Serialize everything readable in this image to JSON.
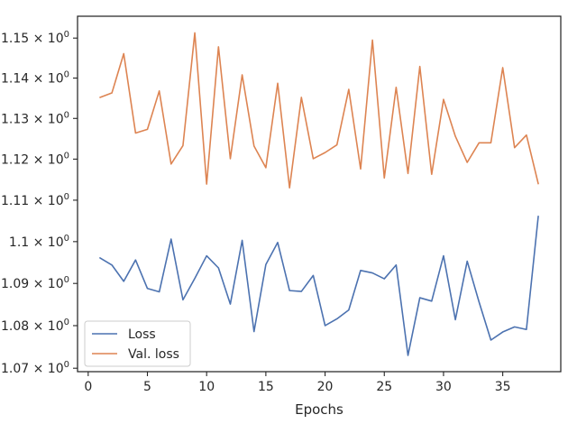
{
  "chart_data": {
    "type": "line",
    "xlabel": "Epochs",
    "ylabel": "",
    "xlim": [
      -0.9,
      39.9
    ],
    "ylim": [
      1.0692,
      1.1555
    ],
    "y_scale": "log",
    "grid": false,
    "legend_position": "lower-left",
    "x_ticks": [
      0,
      5,
      10,
      15,
      20,
      25,
      30,
      35
    ],
    "x_tick_labels": [
      "0",
      "5",
      "10",
      "15",
      "20",
      "25",
      "30",
      "35"
    ],
    "y_ticks": [
      1.07,
      1.08,
      1.09,
      1.1,
      1.11,
      1.12,
      1.13,
      1.14,
      1.15
    ],
    "y_tick_labels": [
      {
        "mantissa": "1.07",
        "base": "10",
        "exp": "0"
      },
      {
        "mantissa": "1.08",
        "base": "10",
        "exp": "0"
      },
      {
        "mantissa": "1.09",
        "base": "10",
        "exp": "0"
      },
      {
        "mantissa": "1.1",
        "base": "10",
        "exp": "0"
      },
      {
        "mantissa": "1.11",
        "base": "10",
        "exp": "0"
      },
      {
        "mantissa": "1.12",
        "base": "10",
        "exp": "0"
      },
      {
        "mantissa": "1.13",
        "base": "10",
        "exp": "0"
      },
      {
        "mantissa": "1.14",
        "base": "10",
        "exp": "0"
      },
      {
        "mantissa": "1.15",
        "base": "10",
        "exp": "0"
      }
    ],
    "x": [
      1,
      2,
      3,
      4,
      5,
      6,
      7,
      8,
      9,
      10,
      11,
      12,
      13,
      14,
      15,
      16,
      17,
      18,
      19,
      20,
      21,
      22,
      23,
      24,
      25,
      26,
      27,
      28,
      29,
      30,
      31,
      32,
      33,
      34,
      35,
      36,
      37,
      38
    ],
    "series": [
      {
        "name": "Loss",
        "color": "#4c72b0",
        "values": [
          1.0961,
          1.0944,
          1.0905,
          1.0956,
          1.0888,
          1.088,
          1.1006,
          1.0861,
          1.0912,
          1.0966,
          1.0937,
          1.0851,
          1.1003,
          1.0786,
          1.0945,
          1.0998,
          1.0883,
          1.0881,
          1.0919,
          1.08,
          1.0816,
          1.0837,
          1.0931,
          1.0925,
          1.0911,
          1.0944,
          1.073,
          1.0866,
          1.0858,
          1.0966,
          1.0814,
          1.0953,
          1.0856,
          1.0766,
          1.0785,
          1.0797,
          1.0791,
          1.1061
        ]
      },
      {
        "name": "Val. loss",
        "color": "#dd8452",
        "values": [
          1.1352,
          1.1363,
          1.1461,
          1.1264,
          1.1273,
          1.1368,
          1.1188,
          1.1233,
          1.1513,
          1.1139,
          1.1478,
          1.1201,
          1.1408,
          1.1232,
          1.1179,
          1.1387,
          1.113,
          1.1352,
          1.1201,
          1.1216,
          1.1235,
          1.1372,
          1.1176,
          1.1495,
          1.1154,
          1.1377,
          1.1165,
          1.1429,
          1.1163,
          1.1347,
          1.1256,
          1.1192,
          1.124,
          1.124,
          1.1426,
          1.1228,
          1.1259,
          1.114
        ]
      }
    ]
  }
}
